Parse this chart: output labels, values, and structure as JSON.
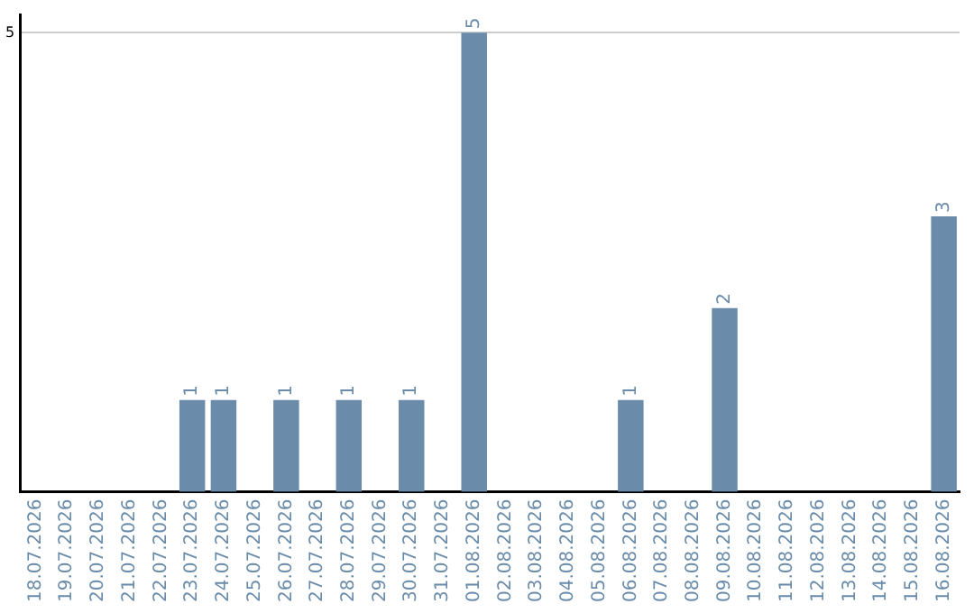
{
  "chart_data": {
    "type": "bar",
    "categories": [
      "18.07.2026",
      "19.07.2026",
      "20.07.2026",
      "21.07.2026",
      "22.07.2026",
      "23.07.2026",
      "24.07.2026",
      "25.07.2026",
      "26.07.2026",
      "27.07.2026",
      "28.07.2026",
      "29.07.2026",
      "30.07.2026",
      "31.07.2026",
      "01.08.2026",
      "02.08.2026",
      "03.08.2026",
      "04.08.2026",
      "05.08.2026",
      "06.08.2026",
      "07.08.2026",
      "08.08.2026",
      "09.08.2026",
      "10.08.2026",
      "11.08.2026",
      "12.08.2026",
      "13.08.2026",
      "14.08.2026",
      "15.08.2026",
      "16.08.2026"
    ],
    "values": [
      0,
      0,
      0,
      0,
      0,
      1,
      1,
      0,
      1,
      0,
      1,
      0,
      1,
      0,
      5,
      0,
      0,
      0,
      0,
      1,
      0,
      0,
      2,
      0,
      0,
      0,
      0,
      0,
      0,
      3
    ],
    "value_labels": [
      null,
      null,
      null,
      null,
      null,
      "1",
      "1",
      null,
      "1",
      null,
      "1",
      null,
      "1",
      null,
      "5",
      null,
      null,
      null,
      null,
      "1",
      null,
      null,
      "2",
      null,
      null,
      null,
      null,
      null,
      null,
      "3"
    ],
    "color": "#6a8caa",
    "ylim": [
      0,
      5.2
    ],
    "yticks": [
      5
    ],
    "grid": "y",
    "legend": false
  }
}
